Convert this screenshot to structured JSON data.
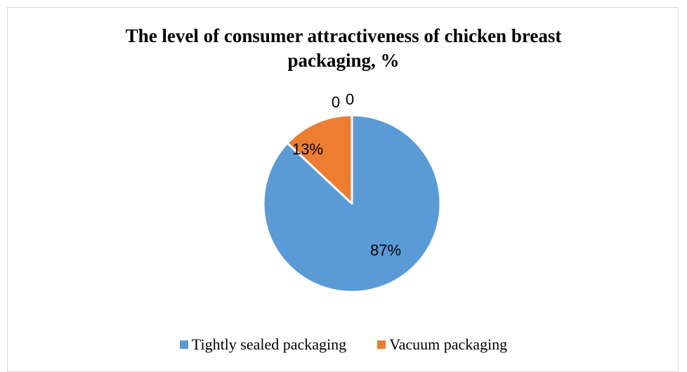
{
  "chart_data": {
    "type": "pie",
    "title_lines": [
      "The level of consumer attractiveness of chicken breast",
      "packaging, %"
    ],
    "categories": [
      "Tightly sealed packaging",
      "Vacuum packaging"
    ],
    "values": [
      87,
      13
    ],
    "data_labels": [
      "87%",
      "13%"
    ],
    "extra_labels": [
      "0",
      "0"
    ],
    "colors": [
      "#5B9BD5",
      "#ED7D31"
    ],
    "legend_position": "bottom"
  }
}
